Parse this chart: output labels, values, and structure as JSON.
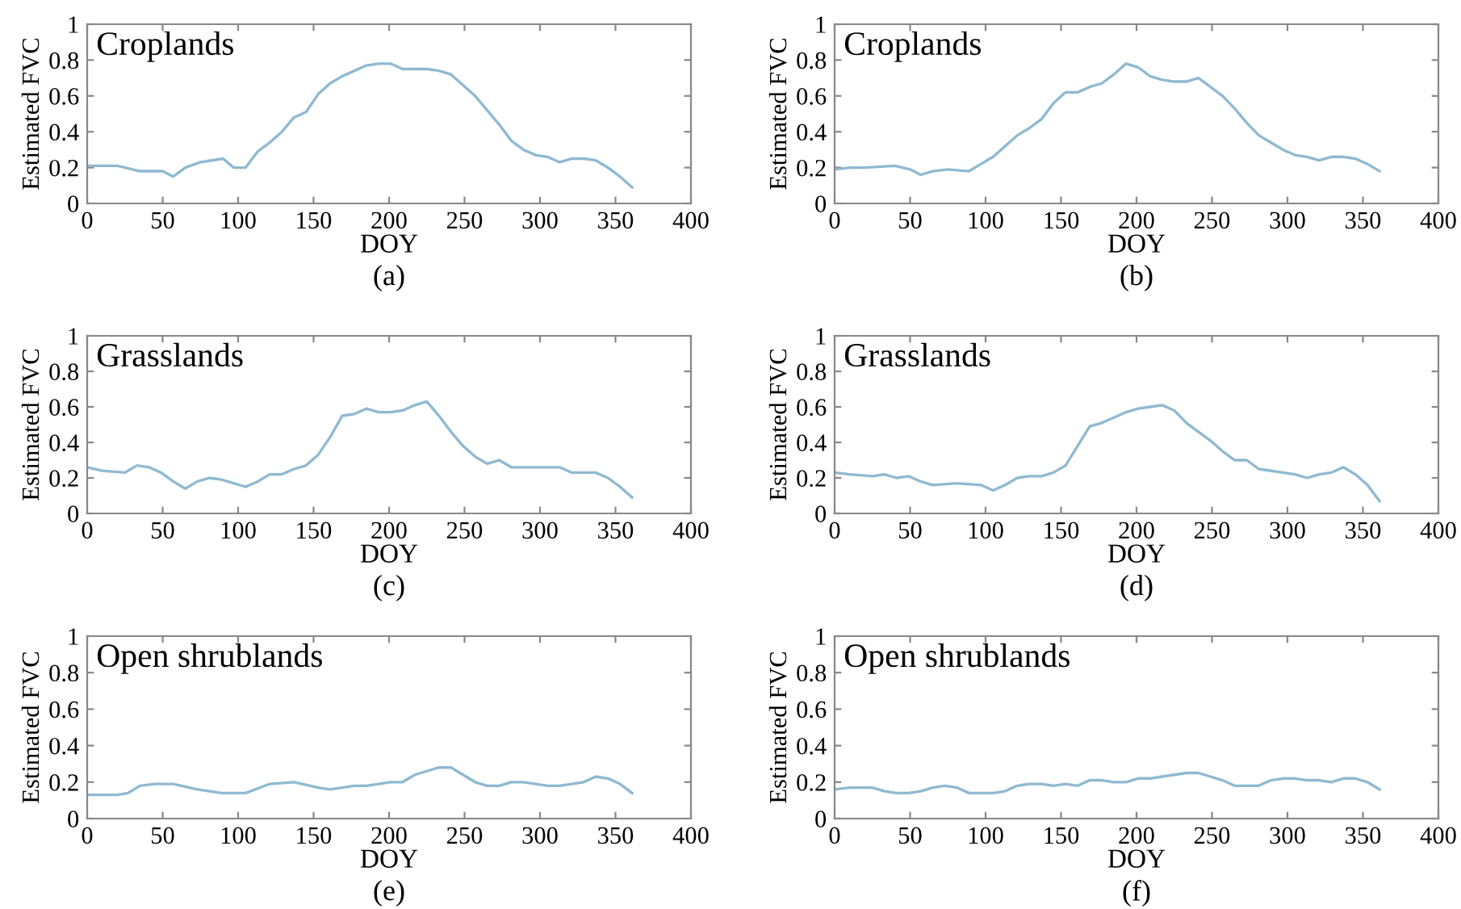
{
  "chart_data": [
    {
      "type": "line",
      "title": "Croplands",
      "xlabel": "DOY",
      "ylabel": "Estimated FVC",
      "annotations": [
        "(a)"
      ],
      "xlim": [
        0,
        400
      ],
      "ylim": [
        0,
        1
      ],
      "xticks": [
        0,
        50,
        100,
        150,
        200,
        250,
        300,
        350,
        400
      ],
      "yticks": [
        0,
        0.2,
        0.4,
        0.6,
        0.8,
        1
      ],
      "series": [
        {
          "color": "#8fb9d2",
          "x": [
            0,
            10,
            20,
            25,
            35,
            50,
            57,
            65,
            75,
            90,
            97,
            105,
            113,
            121,
            129,
            137,
            145,
            153,
            161,
            169,
            177,
            185,
            193,
            201,
            209,
            217,
            225,
            233,
            241,
            249,
            257,
            265,
            273,
            281,
            289,
            297,
            305,
            313,
            321,
            329,
            337,
            345,
            353,
            361
          ],
          "values": [
            0.21,
            0.21,
            0.21,
            0.2,
            0.18,
            0.18,
            0.15,
            0.2,
            0.23,
            0.25,
            0.2,
            0.2,
            0.29,
            0.34,
            0.4,
            0.48,
            0.51,
            0.61,
            0.67,
            0.71,
            0.74,
            0.77,
            0.78,
            0.78,
            0.75,
            0.75,
            0.75,
            0.74,
            0.72,
            0.66,
            0.6,
            0.52,
            0.44,
            0.35,
            0.3,
            0.27,
            0.26,
            0.23,
            0.25,
            0.25,
            0.24,
            0.2,
            0.15,
            0.09
          ]
        }
      ]
    },
    {
      "type": "line",
      "title": "Croplands",
      "xlabel": "DOY",
      "ylabel": "Estimated FVC",
      "annotations": [
        "(b)"
      ],
      "xlim": [
        0,
        400
      ],
      "ylim": [
        0,
        1
      ],
      "xticks": [
        0,
        50,
        100,
        150,
        200,
        250,
        300,
        350,
        400
      ],
      "yticks": [
        0,
        0.2,
        0.4,
        0.6,
        0.8,
        1
      ],
      "series": [
        {
          "color": "#8fb9d2",
          "x": [
            0,
            10,
            20,
            40,
            50,
            57,
            65,
            75,
            89,
            97,
            105,
            113,
            121,
            129,
            137,
            145,
            153,
            161,
            169,
            177,
            185,
            193,
            201,
            209,
            217,
            225,
            233,
            241,
            249,
            257,
            265,
            273,
            281,
            289,
            297,
            305,
            313,
            321,
            329,
            337,
            345,
            353,
            361
          ],
          "values": [
            0.19,
            0.2,
            0.2,
            0.21,
            0.19,
            0.16,
            0.18,
            0.19,
            0.18,
            0.22,
            0.26,
            0.32,
            0.38,
            0.42,
            0.47,
            0.56,
            0.62,
            0.62,
            0.65,
            0.67,
            0.72,
            0.78,
            0.76,
            0.71,
            0.69,
            0.68,
            0.68,
            0.7,
            0.65,
            0.6,
            0.53,
            0.45,
            0.38,
            0.34,
            0.3,
            0.27,
            0.26,
            0.24,
            0.26,
            0.26,
            0.25,
            0.22,
            0.18
          ]
        }
      ]
    },
    {
      "type": "line",
      "title": "Grasslands",
      "xlabel": "DOY",
      "ylabel": "Estimated FVC",
      "annotations": [
        "(c)"
      ],
      "xlim": [
        0,
        400
      ],
      "ylim": [
        0,
        1
      ],
      "xticks": [
        0,
        50,
        100,
        150,
        200,
        250,
        300,
        350,
        400
      ],
      "yticks": [
        0,
        0.2,
        0.4,
        0.6,
        0.8,
        1
      ],
      "series": [
        {
          "color": "#8fb9d2",
          "x": [
            0,
            10,
            25,
            33,
            41,
            49,
            57,
            65,
            73,
            81,
            89,
            97,
            105,
            113,
            121,
            129,
            137,
            145,
            153,
            161,
            169,
            177,
            185,
            193,
            201,
            209,
            217,
            225,
            233,
            241,
            249,
            257,
            265,
            273,
            281,
            297,
            313,
            321,
            337,
            345,
            353,
            361
          ],
          "values": [
            0.26,
            0.24,
            0.23,
            0.27,
            0.26,
            0.23,
            0.18,
            0.14,
            0.18,
            0.2,
            0.19,
            0.17,
            0.15,
            0.18,
            0.22,
            0.22,
            0.25,
            0.27,
            0.33,
            0.43,
            0.55,
            0.56,
            0.59,
            0.57,
            0.57,
            0.58,
            0.61,
            0.63,
            0.55,
            0.46,
            0.38,
            0.32,
            0.28,
            0.3,
            0.26,
            0.26,
            0.26,
            0.23,
            0.23,
            0.2,
            0.15,
            0.09
          ]
        }
      ]
    },
    {
      "type": "line",
      "title": "Grasslands",
      "xlabel": "DOY",
      "ylabel": "Estimated FVC",
      "annotations": [
        "(d)"
      ],
      "xlim": [
        0,
        400
      ],
      "ylim": [
        0,
        1
      ],
      "xticks": [
        0,
        50,
        100,
        150,
        200,
        250,
        300,
        350,
        400
      ],
      "yticks": [
        0,
        0.2,
        0.4,
        0.6,
        0.8,
        1
      ],
      "series": [
        {
          "color": "#8fb9d2",
          "x": [
            0,
            10,
            25,
            33,
            41,
            49,
            57,
            65,
            81,
            97,
            105,
            113,
            121,
            129,
            137,
            145,
            153,
            161,
            169,
            177,
            185,
            193,
            201,
            209,
            217,
            225,
            233,
            241,
            249,
            257,
            265,
            273,
            281,
            297,
            305,
            313,
            321,
            329,
            337,
            345,
            353,
            361
          ],
          "values": [
            0.23,
            0.22,
            0.21,
            0.22,
            0.2,
            0.21,
            0.18,
            0.16,
            0.17,
            0.16,
            0.13,
            0.16,
            0.2,
            0.21,
            0.21,
            0.23,
            0.27,
            0.38,
            0.49,
            0.51,
            0.54,
            0.57,
            0.59,
            0.6,
            0.61,
            0.58,
            0.51,
            0.46,
            0.41,
            0.35,
            0.3,
            0.3,
            0.25,
            0.23,
            0.22,
            0.2,
            0.22,
            0.23,
            0.26,
            0.22,
            0.16,
            0.07
          ]
        }
      ]
    },
    {
      "type": "line",
      "title": "Open shrublands",
      "xlabel": "DOY",
      "ylabel": "Estimated FVC",
      "annotations": [
        "(e)"
      ],
      "xlim": [
        0,
        400
      ],
      "ylim": [
        0,
        1
      ],
      "xticks": [
        0,
        50,
        100,
        150,
        200,
        250,
        300,
        350,
        400
      ],
      "yticks": [
        0,
        0.2,
        0.4,
        0.6,
        0.8,
        1
      ],
      "series": [
        {
          "color": "#8fb9d2",
          "x": [
            0,
            10,
            20,
            27,
            35,
            45,
            57,
            73,
            89,
            105,
            121,
            137,
            153,
            161,
            177,
            185,
            193,
            201,
            209,
            217,
            225,
            233,
            241,
            249,
            257,
            265,
            273,
            281,
            289,
            297,
            305,
            313,
            321,
            329,
            337,
            345,
            353,
            361
          ],
          "values": [
            0.13,
            0.13,
            0.13,
            0.14,
            0.18,
            0.19,
            0.19,
            0.16,
            0.14,
            0.14,
            0.19,
            0.2,
            0.17,
            0.16,
            0.18,
            0.18,
            0.19,
            0.2,
            0.2,
            0.24,
            0.26,
            0.28,
            0.28,
            0.24,
            0.2,
            0.18,
            0.18,
            0.2,
            0.2,
            0.19,
            0.18,
            0.18,
            0.19,
            0.2,
            0.23,
            0.22,
            0.19,
            0.14
          ]
        }
      ]
    },
    {
      "type": "line",
      "title": "Open shrublands",
      "xlabel": "DOY",
      "ylabel": "Estimated FVC",
      "annotations": [
        "(f)"
      ],
      "xlim": [
        0,
        400
      ],
      "ylim": [
        0,
        1
      ],
      "xticks": [
        0,
        50,
        100,
        150,
        200,
        250,
        300,
        350,
        400
      ],
      "yticks": [
        0,
        0.2,
        0.4,
        0.6,
        0.8,
        1
      ],
      "series": [
        {
          "color": "#8fb9d2",
          "x": [
            0,
            10,
            25,
            33,
            41,
            49,
            57,
            65,
            73,
            81,
            89,
            97,
            105,
            113,
            121,
            129,
            137,
            145,
            153,
            161,
            169,
            177,
            185,
            193,
            201,
            209,
            217,
            225,
            233,
            241,
            249,
            257,
            265,
            273,
            281,
            289,
            297,
            305,
            313,
            321,
            329,
            337,
            345,
            353,
            361
          ],
          "values": [
            0.16,
            0.17,
            0.17,
            0.15,
            0.14,
            0.14,
            0.15,
            0.17,
            0.18,
            0.17,
            0.14,
            0.14,
            0.14,
            0.15,
            0.18,
            0.19,
            0.19,
            0.18,
            0.19,
            0.18,
            0.21,
            0.21,
            0.2,
            0.2,
            0.22,
            0.22,
            0.23,
            0.24,
            0.25,
            0.25,
            0.23,
            0.21,
            0.18,
            0.18,
            0.18,
            0.21,
            0.22,
            0.22,
            0.21,
            0.21,
            0.2,
            0.22,
            0.22,
            0.2,
            0.16
          ]
        }
      ]
    }
  ]
}
